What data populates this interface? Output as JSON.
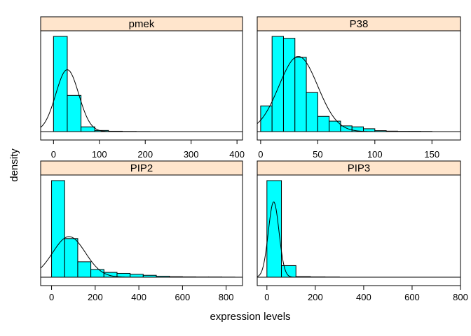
{
  "chart_data": {
    "type": "bar",
    "layout": "2x2 trellis histogram with density overlay",
    "xlabel": "expression levels",
    "ylabel": "density",
    "colors": {
      "bars": "#00ffff",
      "strip": "#ffe5cc",
      "line": "#000000"
    },
    "panels": [
      {
        "name": "pmek",
        "xlim": [
          -28,
          412
        ],
        "xticks": [
          0,
          100,
          200,
          300,
          400
        ],
        "bins": [
          {
            "x0": 0,
            "x1": 30,
            "density": 1.0
          },
          {
            "x0": 30,
            "x1": 60,
            "density": 0.38
          },
          {
            "x0": 60,
            "x1": 90,
            "density": 0.05
          },
          {
            "x0": 90,
            "x1": 120,
            "density": 0.012
          },
          {
            "x0": 120,
            "x1": 150,
            "density": 0.004
          },
          {
            "x0": 150,
            "x1": 180,
            "density": 0.002
          },
          {
            "x0": 180,
            "x1": 210,
            "density": 0.001
          }
        ],
        "curve": {
          "mean": 30,
          "sd": 25,
          "peak": 0.65
        }
      },
      {
        "name": "P38",
        "xlim": [
          -3,
          175
        ],
        "xticks": [
          0,
          50,
          100,
          150
        ],
        "bins": [
          {
            "x0": 0,
            "x1": 10,
            "density": 0.27
          },
          {
            "x0": 10,
            "x1": 20,
            "density": 1.0
          },
          {
            "x0": 20,
            "x1": 30,
            "density": 0.98
          },
          {
            "x0": 30,
            "x1": 40,
            "density": 0.78
          },
          {
            "x0": 40,
            "x1": 50,
            "density": 0.41
          },
          {
            "x0": 50,
            "x1": 60,
            "density": 0.16
          },
          {
            "x0": 60,
            "x1": 70,
            "density": 0.11
          },
          {
            "x0": 70,
            "x1": 80,
            "density": 0.06
          },
          {
            "x0": 80,
            "x1": 90,
            "density": 0.05
          },
          {
            "x0": 90,
            "x1": 100,
            "density": 0.03
          },
          {
            "x0": 100,
            "x1": 110,
            "density": 0.01
          },
          {
            "x0": 110,
            "x1": 120,
            "density": 0.005
          },
          {
            "x0": 120,
            "x1": 130,
            "density": 0.003
          },
          {
            "x0": 130,
            "x1": 140,
            "density": 0.003
          },
          {
            "x0": 140,
            "x1": 150,
            "density": 0.002
          }
        ],
        "curve": {
          "mean": 33,
          "sd": 17,
          "peak": 0.79
        }
      },
      {
        "name": "PIP2",
        "xlim": [
          -50,
          875
        ],
        "xticks": [
          0,
          200,
          400,
          600,
          800
        ],
        "bins": [
          {
            "x0": 0,
            "x1": 60,
            "density": 1.0
          },
          {
            "x0": 60,
            "x1": 120,
            "density": 0.4
          },
          {
            "x0": 120,
            "x1": 180,
            "density": 0.16
          },
          {
            "x0": 180,
            "x1": 240,
            "density": 0.08
          },
          {
            "x0": 240,
            "x1": 300,
            "density": 0.05
          },
          {
            "x0": 300,
            "x1": 360,
            "density": 0.04
          },
          {
            "x0": 360,
            "x1": 420,
            "density": 0.03
          },
          {
            "x0": 420,
            "x1": 480,
            "density": 0.02
          },
          {
            "x0": 480,
            "x1": 540,
            "density": 0.01
          },
          {
            "x0": 540,
            "x1": 600,
            "density": 0.005
          },
          {
            "x0": 600,
            "x1": 660,
            "density": 0.003
          },
          {
            "x0": 660,
            "x1": 720,
            "density": 0.002
          },
          {
            "x0": 720,
            "x1": 780,
            "density": 0.002
          },
          {
            "x0": 780,
            "x1": 840,
            "density": 0.001
          }
        ],
        "curve": {
          "mean": 80,
          "sd": 75,
          "peak": 0.42
        }
      },
      {
        "name": "PIP3",
        "xlim": [
          -40,
          800
        ],
        "xticks": [
          0,
          200,
          400,
          600,
          800
        ],
        "bins": [
          {
            "x0": 0,
            "x1": 60,
            "density": 1.0
          },
          {
            "x0": 60,
            "x1": 120,
            "density": 0.12
          },
          {
            "x0": 120,
            "x1": 180,
            "density": 0.006
          },
          {
            "x0": 180,
            "x1": 240,
            "density": 0.003
          },
          {
            "x0": 240,
            "x1": 300,
            "density": 0.002
          }
        ],
        "curve": {
          "mean": 28,
          "sd": 22,
          "peak": 0.78
        }
      }
    ]
  }
}
